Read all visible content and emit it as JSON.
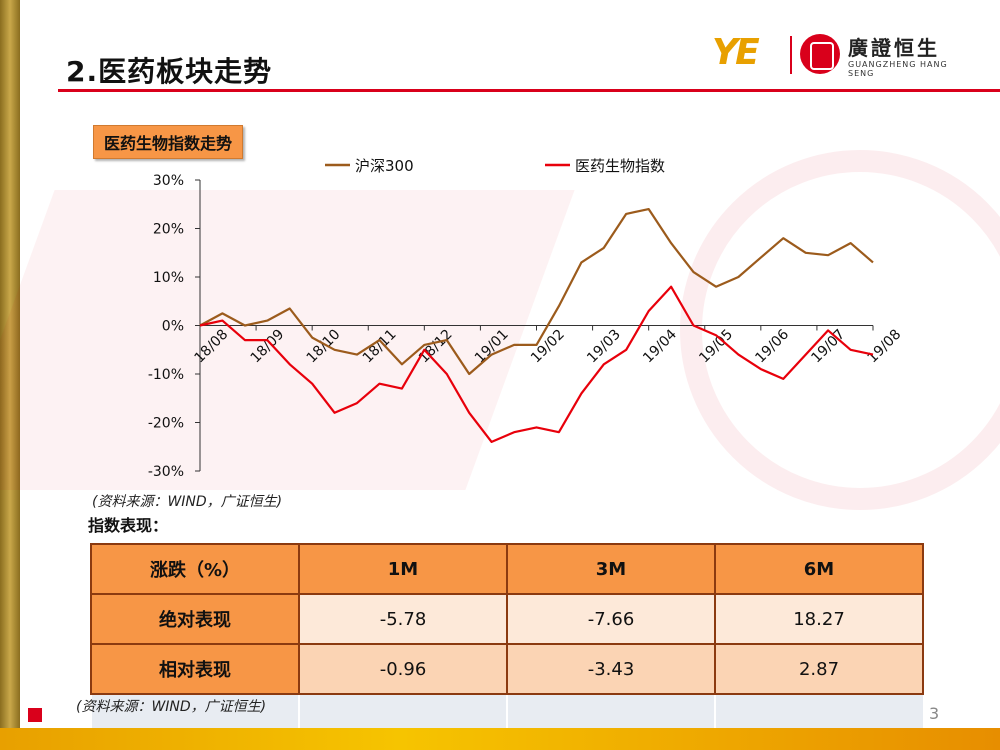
{
  "header": {
    "title": "2.医药板块走势",
    "logo_cn": "廣證恒生",
    "logo_en": "GUANGZHENG HANG SENG",
    "logo_mark": "YE"
  },
  "chart_label": "医药生物指数走势",
  "chart_data": {
    "type": "line",
    "title": "",
    "xlabel": "",
    "ylabel": "",
    "ylim": [
      -30,
      30
    ],
    "yticks": [
      "30%",
      "20%",
      "10%",
      "0%",
      "-10%",
      "-20%",
      "-30%"
    ],
    "x_labels": [
      "18/08",
      "18/09",
      "18/10",
      "18/11",
      "18/12",
      "19/01",
      "19/02",
      "19/03",
      "19/04",
      "19/05",
      "19/06",
      "19/07",
      "19/08"
    ],
    "legend_position": "top",
    "series": [
      {
        "name": "沪深300",
        "color": "#9c5b1c",
        "values": [
          0,
          2.5,
          0,
          1,
          3.5,
          -2.5,
          -5,
          -6,
          -3,
          -8,
          -4,
          -3,
          -10,
          -6,
          -4,
          -4,
          4,
          13,
          16,
          23,
          24,
          17,
          11,
          8,
          10,
          14,
          18,
          15,
          14.5,
          17,
          13
        ]
      },
      {
        "name": "医药生物指数",
        "color": "#e8000b",
        "values": [
          0,
          1,
          -3,
          -3,
          -8,
          -12,
          -18,
          -16,
          -12,
          -13,
          -5,
          -10,
          -18,
          -24,
          -22,
          -21,
          -22,
          -14,
          -8,
          -5,
          3,
          8,
          0,
          -2,
          -6,
          -9,
          -11,
          -6,
          -1,
          -5,
          -6
        ]
      }
    ]
  },
  "source_text": "(资料来源：WIND，广证恒生)",
  "table_title": "指数表现：",
  "table": {
    "headers": [
      "涨跌（%）",
      "1M",
      "3M",
      "6M"
    ],
    "rows": [
      {
        "label": "绝对表现",
        "values": [
          "-5.78",
          "-7.66",
          "18.27"
        ]
      },
      {
        "label": "相对表现",
        "values": [
          "-0.96",
          "-3.43",
          "2.87"
        ]
      }
    ]
  },
  "page_number": "3",
  "colors": {
    "accent_red": "#d9001b",
    "accent_orange": "#f79646",
    "gold": "#e8a000"
  }
}
